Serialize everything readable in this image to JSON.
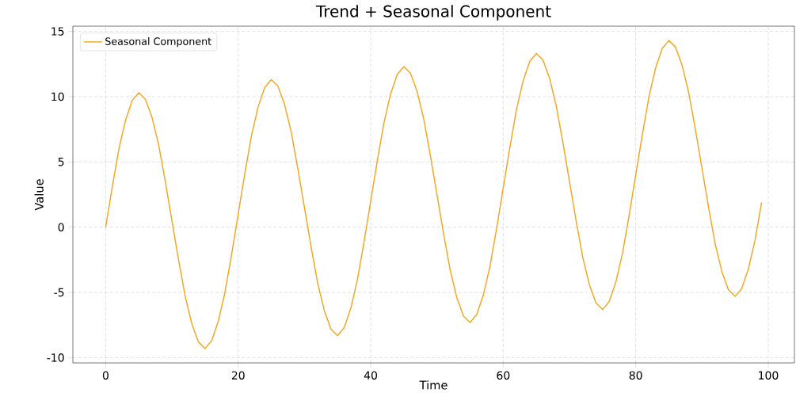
{
  "chart_data": {
    "type": "line",
    "title": "Trend + Seasonal Component",
    "xlabel": "Time",
    "ylabel": "Value",
    "x": [
      0,
      1,
      2,
      3,
      4,
      5,
      6,
      7,
      8,
      9,
      10,
      11,
      12,
      13,
      14,
      15,
      16,
      17,
      18,
      19,
      20,
      21,
      22,
      23,
      24,
      25,
      26,
      27,
      28,
      29,
      30,
      31,
      32,
      33,
      34,
      35,
      36,
      37,
      38,
      39,
      40,
      41,
      42,
      43,
      44,
      45,
      46,
      47,
      48,
      49,
      50,
      51,
      52,
      53,
      54,
      55,
      56,
      57,
      58,
      59,
      60,
      61,
      62,
      63,
      64,
      65,
      66,
      67,
      68,
      69,
      70,
      71,
      72,
      73,
      74,
      75,
      76,
      77,
      78,
      79,
      80,
      81,
      82,
      83,
      84,
      85,
      86,
      87,
      88,
      89,
      90,
      91,
      92,
      93,
      94,
      95,
      96,
      97,
      98,
      99
    ],
    "series": [
      {
        "name": "Seasonal Component",
        "color": "#f5a623",
        "values": [
          0,
          3.1,
          6.0,
          8.2,
          9.7,
          10.3,
          9.8,
          8.4,
          6.3,
          3.5,
          0.5,
          -2.5,
          -5.3,
          -7.4,
          -8.8,
          -9.3,
          -8.7,
          -7.2,
          -5.0,
          -2.1,
          1.0,
          4.1,
          7.0,
          9.2,
          10.7,
          11.3,
          10.8,
          9.4,
          7.3,
          4.5,
          1.5,
          -1.5,
          -4.3,
          -6.4,
          -7.8,
          -8.3,
          -7.7,
          -6.2,
          -4.0,
          -1.1,
          2.0,
          5.1,
          8.0,
          10.2,
          11.7,
          12.3,
          11.8,
          10.4,
          8.3,
          5.5,
          2.5,
          -0.5,
          -3.3,
          -5.4,
          -6.8,
          -7.3,
          -6.7,
          -5.2,
          -3.0,
          -0.1,
          3.0,
          6.1,
          9.0,
          11.2,
          12.7,
          13.3,
          12.8,
          11.4,
          9.3,
          6.5,
          3.5,
          0.5,
          -2.3,
          -4.4,
          -5.8,
          -6.3,
          -5.7,
          -4.2,
          -2.0,
          0.9,
          4.0,
          7.1,
          10.0,
          12.2,
          13.7,
          14.3,
          13.8,
          12.4,
          10.3,
          7.5,
          4.5,
          1.5,
          -1.3,
          -3.4,
          -4.8,
          -5.3,
          -4.7,
          -3.2,
          -1.0,
          1.9
        ]
      }
    ],
    "xlim": [
      -4.95,
      103.95
    ],
    "ylim": [
      -10.4,
      15.4
    ],
    "xticks": [
      0,
      20,
      40,
      60,
      80,
      100
    ],
    "yticks": [
      -10,
      -5,
      0,
      5,
      10,
      15
    ],
    "grid": true,
    "legend": "top left",
    "marker": "none",
    "line_style": "solid"
  }
}
